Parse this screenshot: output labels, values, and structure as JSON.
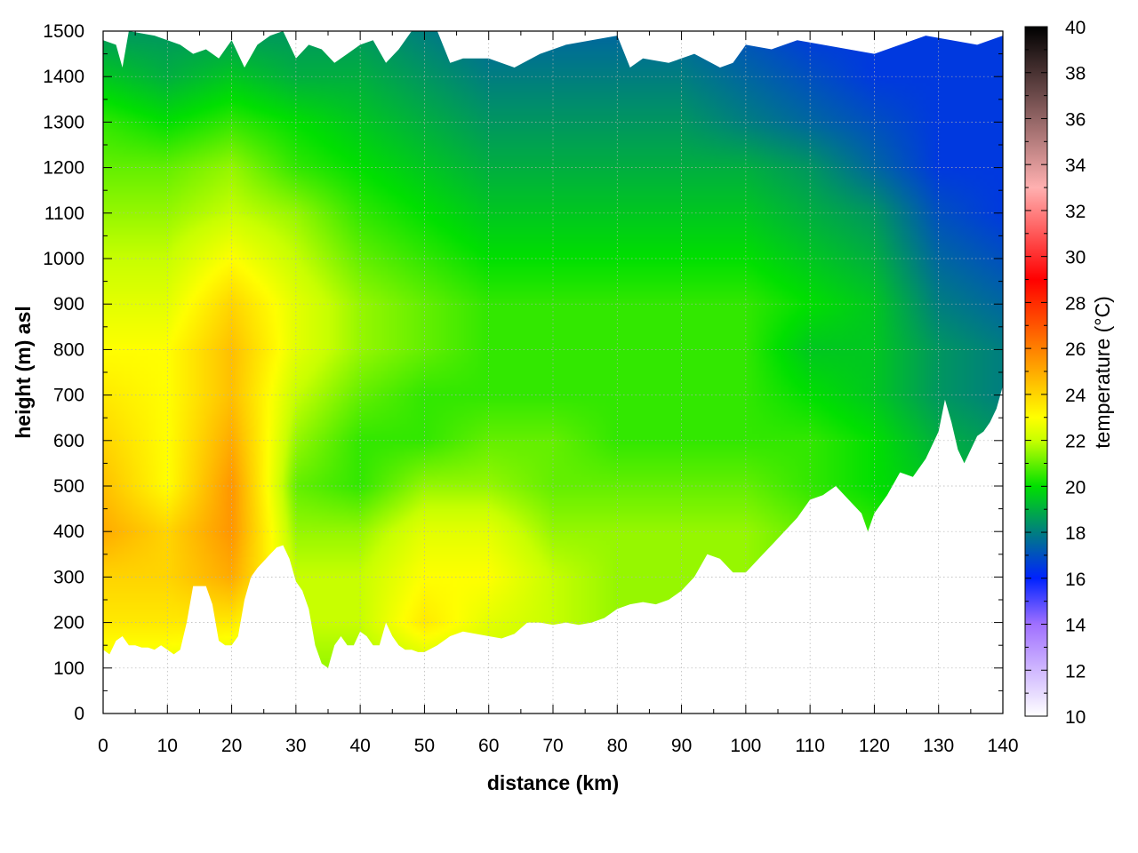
{
  "chart_data": {
    "type": "heatmap",
    "title": "",
    "xlabel": "distance (km)",
    "ylabel": "height (m) asl",
    "colorbar_label": "temperature (°C)",
    "xlim": [
      0,
      140
    ],
    "ylim": [
      0,
      1500
    ],
    "clim": [
      10,
      40
    ],
    "x_ticks": [
      0,
      10,
      20,
      30,
      40,
      50,
      60,
      70,
      80,
      90,
      100,
      110,
      120,
      130,
      140
    ],
    "y_ticks": [
      0,
      100,
      200,
      300,
      400,
      500,
      600,
      700,
      800,
      900,
      1000,
      1100,
      1200,
      1300,
      1400,
      1500
    ],
    "colorbar_ticks": [
      10,
      12,
      14,
      16,
      18,
      20,
      22,
      24,
      26,
      28,
      30,
      32,
      34,
      36,
      38,
      40
    ],
    "grid": true,
    "colormap": [
      {
        "t": 10,
        "color": "#ffffff"
      },
      {
        "t": 14,
        "color": "#a070ff"
      },
      {
        "t": 16,
        "color": "#0022ff"
      },
      {
        "t": 18,
        "color": "#007e80"
      },
      {
        "t": 20,
        "color": "#00e000"
      },
      {
        "t": 22,
        "color": "#c8ff00"
      },
      {
        "t": 23,
        "color": "#ffff00"
      },
      {
        "t": 26,
        "color": "#ff8000"
      },
      {
        "t": 29,
        "color": "#ff0000"
      },
      {
        "t": 33,
        "color": "#ffb0b0"
      },
      {
        "t": 40,
        "color": "#000000"
      }
    ],
    "terrain_profile": {
      "x": [
        0,
        1,
        2,
        3,
        4,
        5,
        6,
        7,
        8,
        9,
        10,
        11,
        12,
        13,
        14,
        15,
        16,
        17,
        18,
        19,
        20,
        21,
        22,
        23,
        24,
        25,
        26,
        27,
        28,
        29,
        30,
        31,
        32,
        33,
        34,
        35,
        36,
        37,
        38,
        39,
        40,
        41,
        42,
        43,
        44,
        45,
        46,
        47,
        48,
        49,
        50,
        52,
        54,
        56,
        58,
        60,
        62,
        64,
        66,
        68,
        70,
        72,
        74,
        76,
        78,
        80,
        82,
        84,
        86,
        88,
        90,
        92,
        94,
        96,
        98,
        100,
        102,
        104,
        106,
        108,
        110,
        112,
        114,
        116,
        118,
        119,
        120,
        122,
        124,
        126,
        128,
        130,
        131,
        132,
        133,
        134,
        135,
        136,
        137,
        138,
        139,
        140
      ],
      "height": [
        140,
        130,
        160,
        170,
        150,
        150,
        145,
        145,
        140,
        150,
        140,
        130,
        140,
        200,
        280,
        280,
        280,
        240,
        160,
        150,
        150,
        170,
        250,
        300,
        320,
        335,
        350,
        365,
        370,
        340,
        290,
        270,
        230,
        150,
        110,
        100,
        150,
        170,
        150,
        150,
        180,
        170,
        150,
        150,
        200,
        170,
        150,
        140,
        140,
        135,
        135,
        150,
        170,
        180,
        175,
        170,
        165,
        175,
        200,
        200,
        195,
        200,
        195,
        200,
        210,
        230,
        240,
        245,
        240,
        250,
        270,
        300,
        350,
        340,
        310,
        310,
        340,
        370,
        400,
        430,
        470,
        480,
        500,
        470,
        440,
        400,
        440,
        480,
        530,
        520,
        560,
        620,
        690,
        640,
        580,
        550,
        580,
        610,
        620,
        640,
        670,
        720
      ]
    },
    "top_profile": {
      "x": [
        0,
        2,
        3,
        4,
        8,
        12,
        14,
        16,
        18,
        20,
        22,
        24,
        26,
        28,
        30,
        32,
        34,
        36,
        38,
        40,
        42,
        44,
        46,
        48,
        50,
        52,
        54,
        56,
        60,
        64,
        68,
        72,
        76,
        80,
        82,
        84,
        88,
        92,
        96,
        98,
        100,
        104,
        108,
        112,
        116,
        120,
        124,
        128,
        132,
        136,
        140
      ],
      "height": [
        1480,
        1470,
        1420,
        1500,
        1490,
        1470,
        1450,
        1460,
        1440,
        1480,
        1420,
        1470,
        1490,
        1500,
        1440,
        1470,
        1460,
        1430,
        1450,
        1470,
        1480,
        1430,
        1460,
        1500,
        1500,
        1500,
        1430,
        1440,
        1440,
        1420,
        1450,
        1470,
        1480,
        1490,
        1420,
        1440,
        1430,
        1450,
        1420,
        1430,
        1470,
        1460,
        1480,
        1470,
        1460,
        1450,
        1470,
        1490,
        1480,
        1470,
        1490
      ]
    },
    "temperature_field": {
      "x": [
        0,
        10,
        20,
        30,
        40,
        50,
        60,
        70,
        80,
        90,
        100,
        110,
        120,
        130,
        140
      ],
      "height": [
        100,
        200,
        300,
        400,
        500,
        600,
        700,
        800,
        900,
        1000,
        1100,
        1200,
        1300,
        1400,
        1500
      ],
      "values": [
        [
          22.5,
          22.5,
          22.0,
          21.5,
          21.5,
          22.0,
          22.0,
          22.0,
          21.5,
          21.5,
          21.5,
          21.0,
          20.5,
          20.0,
          19.5
        ],
        [
          23.5,
          23.5,
          23.5,
          22.0,
          22.0,
          23.5,
          22.5,
          22.0,
          21.5,
          21.5,
          21.5,
          21.0,
          20.5,
          20.0,
          19.5
        ],
        [
          24.0,
          24.0,
          25.0,
          22.0,
          22.0,
          23.0,
          23.0,
          22.0,
          21.5,
          21.5,
          21.5,
          21.0,
          20.5,
          20.0,
          19.0
        ],
        [
          25.0,
          24.0,
          25.5,
          21.5,
          21.5,
          22.5,
          22.5,
          21.5,
          21.5,
          21.5,
          21.5,
          21.0,
          20.5,
          19.5,
          19.0
        ],
        [
          24.5,
          23.0,
          25.5,
          21.0,
          20.5,
          21.5,
          21.5,
          21.0,
          21.0,
          21.0,
          21.0,
          20.5,
          20.0,
          19.5,
          19.0
        ],
        [
          24.0,
          23.0,
          25.0,
          21.5,
          20.5,
          20.5,
          21.0,
          21.0,
          20.5,
          20.5,
          20.5,
          20.5,
          20.0,
          19.0,
          18.5
        ],
        [
          23.5,
          23.0,
          24.5,
          22.0,
          21.0,
          20.5,
          20.5,
          20.5,
          20.5,
          20.5,
          20.5,
          20.0,
          19.5,
          18.5,
          18.0
        ],
        [
          23.0,
          23.0,
          24.5,
          22.5,
          21.5,
          21.0,
          20.5,
          20.5,
          20.5,
          20.5,
          20.5,
          19.5,
          19.5,
          18.5,
          18.0
        ],
        [
          22.5,
          22.5,
          24.0,
          22.5,
          21.5,
          21.0,
          20.5,
          20.5,
          20.5,
          20.5,
          20.5,
          20.0,
          19.5,
          18.0,
          17.5
        ],
        [
          22.0,
          22.0,
          23.0,
          22.0,
          21.0,
          20.5,
          20.0,
          20.0,
          20.0,
          20.0,
          20.0,
          19.5,
          19.0,
          17.5,
          17.0
        ],
        [
          21.5,
          21.5,
          22.0,
          21.5,
          20.5,
          20.0,
          19.5,
          19.5,
          19.5,
          19.5,
          19.5,
          19.0,
          18.5,
          17.0,
          16.5
        ],
        [
          21.0,
          21.0,
          21.5,
          20.5,
          20.0,
          19.5,
          19.0,
          19.0,
          19.0,
          19.0,
          19.0,
          18.5,
          17.5,
          16.5,
          16.5
        ],
        [
          20.5,
          20.0,
          20.5,
          20.0,
          19.5,
          19.0,
          18.5,
          18.5,
          18.5,
          18.5,
          18.0,
          17.5,
          17.0,
          16.5,
          16.5
        ],
        [
          19.5,
          19.0,
          19.5,
          19.0,
          19.0,
          18.5,
          18.0,
          18.0,
          18.0,
          18.0,
          17.5,
          17.0,
          16.5,
          16.5,
          16.5
        ],
        [
          18.5,
          18.5,
          18.5,
          18.5,
          18.5,
          18.0,
          17.5,
          17.5,
          17.5,
          17.5,
          17.0,
          16.5,
          16.5,
          16.5,
          16.5
        ]
      ]
    }
  }
}
